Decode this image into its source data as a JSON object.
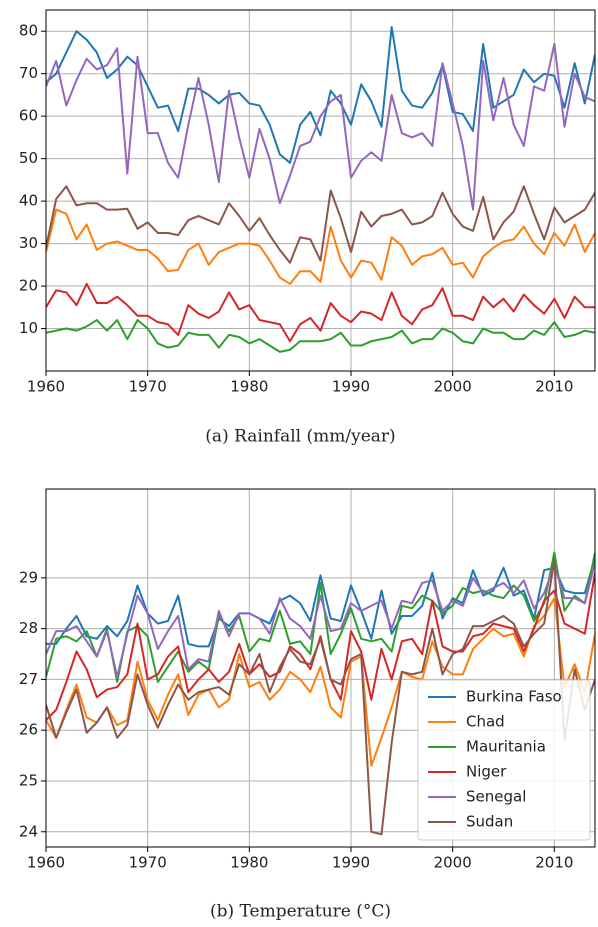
{
  "chart_data": [
    {
      "type": "line",
      "caption": "(a) Rainfall (mm/year)",
      "x": [
        1960,
        1961,
        1962,
        1963,
        1964,
        1965,
        1966,
        1967,
        1968,
        1969,
        1970,
        1971,
        1972,
        1973,
        1974,
        1975,
        1976,
        1977,
        1978,
        1979,
        1980,
        1981,
        1982,
        1983,
        1984,
        1985,
        1986,
        1987,
        1988,
        1989,
        1990,
        1991,
        1992,
        1993,
        1994,
        1995,
        1996,
        1997,
        1998,
        1999,
        2000,
        2001,
        2002,
        2003,
        2004,
        2005,
        2006,
        2007,
        2008,
        2009,
        2010,
        2011,
        2012,
        2013,
        2014
      ],
      "xlim": [
        1960,
        2014
      ],
      "xticks": [
        1960,
        1970,
        1980,
        1990,
        2000,
        2010
      ],
      "ylim": [
        0,
        85
      ],
      "yticks": [
        10,
        20,
        30,
        40,
        50,
        60,
        70,
        80
      ],
      "grid": true,
      "series": [
        {
          "color": "#1f77b4",
          "values": [
            68,
            70,
            75,
            80,
            78,
            75,
            69,
            71,
            74,
            72,
            67,
            62,
            62.5,
            56.5,
            66.5,
            66.5,
            65,
            63,
            65,
            65.5,
            63,
            62.5,
            58,
            51,
            49,
            58,
            61,
            55.5,
            66,
            63,
            58,
            67.5,
            63.5,
            57.5,
            81,
            66,
            62.5,
            62,
            65.5,
            72,
            61,
            60.5,
            56.5,
            77,
            62,
            63.5,
            65,
            71,
            68,
            70,
            69.5,
            62,
            72.5,
            63,
            74.5
          ]
        },
        {
          "color": "#ff7f0e",
          "values": [
            28,
            38,
            37,
            31,
            34.5,
            28.5,
            30,
            30.5,
            29.5,
            28.5,
            28.5,
            26.5,
            23.5,
            23.8,
            28.5,
            30,
            25,
            28,
            29,
            30,
            30,
            29.5,
            26,
            22,
            20.5,
            23.5,
            23.5,
            21,
            34,
            26,
            22,
            26,
            25.5,
            21.5,
            31.5,
            29.5,
            25,
            27,
            27.5,
            29,
            25,
            25.5,
            22,
            27,
            29,
            30.5,
            31,
            34,
            30,
            27.5,
            32.5,
            29.5,
            34.5,
            28,
            32.5
          ]
        },
        {
          "color": "#2ca02c",
          "values": [
            9,
            9.5,
            10,
            9.5,
            10.5,
            12,
            9.5,
            12,
            7.5,
            12,
            10,
            6.5,
            5.5,
            6,
            9,
            8.5,
            8.5,
            5.5,
            8.5,
            8,
            6.5,
            7.5,
            6,
            4.5,
            5,
            7,
            7,
            7,
            7.5,
            9,
            6,
            6,
            7,
            7.5,
            8,
            9.5,
            6.5,
            7.5,
            7.5,
            10,
            9,
            7,
            6.5,
            10,
            9,
            9,
            7.5,
            7.5,
            9.5,
            8.5,
            11.5,
            8,
            8.5,
            9.5,
            9
          ]
        },
        {
          "color": "#d62728",
          "values": [
            15,
            19,
            18.5,
            15.5,
            20.5,
            16,
            16,
            17.5,
            15.5,
            13,
            13,
            11.5,
            11,
            8.5,
            15.5,
            13.5,
            12.5,
            14,
            18.5,
            14.5,
            15.5,
            12,
            11.5,
            11,
            7,
            11,
            12.5,
            9.5,
            16,
            13,
            11.5,
            14,
            13.5,
            12,
            18.5,
            13,
            11,
            14.5,
            15.5,
            19.5,
            13,
            13,
            12,
            17.5,
            15,
            17,
            14,
            18,
            15.5,
            13.5,
            17,
            12.5,
            17.5,
            15,
            15
          ]
        },
        {
          "color": "#9467bd",
          "values": [
            67,
            73,
            62.5,
            68.5,
            73.5,
            71,
            72,
            76,
            46.5,
            74,
            56,
            56,
            49,
            45.5,
            58,
            69,
            58,
            44.5,
            66,
            55,
            45.5,
            57,
            50,
            39.5,
            46,
            53,
            54,
            60,
            63.5,
            65,
            45.5,
            49.5,
            51.5,
            49.5,
            65,
            56,
            55,
            56,
            53,
            72.5,
            63,
            53,
            38,
            73,
            59,
            69,
            58,
            53,
            67,
            66,
            77,
            57.5,
            70,
            64.5,
            63.5
          ]
        },
        {
          "color": "#8c564b",
          "values": [
            29,
            40.5,
            43.5,
            39,
            39.5,
            39.5,
            38,
            38,
            38.2,
            33.5,
            35,
            32.5,
            32.5,
            32,
            35.5,
            36.5,
            35.5,
            34.5,
            39.5,
            36.5,
            33,
            36,
            32,
            28.5,
            25.5,
            31.5,
            31,
            26,
            42.5,
            36,
            28,
            37.5,
            34,
            36.5,
            37,
            38,
            34.5,
            35,
            36.5,
            42,
            37,
            34,
            33,
            41,
            31,
            35,
            37.5,
            43.5,
            37,
            31,
            38.5,
            35,
            36.5,
            38,
            42
          ]
        }
      ]
    },
    {
      "type": "line",
      "caption": "(b) Temperature (°C)",
      "x": [
        1960,
        1961,
        1962,
        1963,
        1964,
        1965,
        1966,
        1967,
        1968,
        1969,
        1970,
        1971,
        1972,
        1973,
        1974,
        1975,
        1976,
        1977,
        1978,
        1979,
        1980,
        1981,
        1982,
        1983,
        1984,
        1985,
        1986,
        1987,
        1988,
        1989,
        1990,
        1991,
        1992,
        1993,
        1994,
        1995,
        1996,
        1997,
        1998,
        1999,
        2000,
        2001,
        2002,
        2003,
        2004,
        2005,
        2006,
        2007,
        2008,
        2009,
        2010,
        2011,
        2012,
        2013,
        2014
      ],
      "xlim": [
        1960,
        2014
      ],
      "xticks": [
        1960,
        1970,
        1980,
        1990,
        2000,
        2010
      ],
      "ylim": [
        23.7,
        30.75
      ],
      "yticks": [
        24,
        25,
        26,
        27,
        28,
        29
      ],
      "grid": true,
      "legend": "lower right",
      "series": [
        {
          "name": "Burkina Faso",
          "color": "#1f77b4",
          "values": [
            27.7,
            27.7,
            28.0,
            28.25,
            27.85,
            27.8,
            28.05,
            27.85,
            28.15,
            28.85,
            28.3,
            28.1,
            28.15,
            28.65,
            27.7,
            27.65,
            27.65,
            28.2,
            28.05,
            28.3,
            28.3,
            28.2,
            28.1,
            28.55,
            28.65,
            28.5,
            28.15,
            29.05,
            28.2,
            28.15,
            28.85,
            28.35,
            27.8,
            28.75,
            27.9,
            28.25,
            28.25,
            28.45,
            29.1,
            28.2,
            28.6,
            28.5,
            29.15,
            28.65,
            28.75,
            29.2,
            28.65,
            28.75,
            28.2,
            29.15,
            29.2,
            28.75,
            28.7,
            28.7,
            29.4
          ]
        },
        {
          "name": "Chad",
          "color": "#ff7f0e",
          "values": [
            26.2,
            25.85,
            26.4,
            26.9,
            26.25,
            26.15,
            26.45,
            26.1,
            26.2,
            27.35,
            26.6,
            26.2,
            26.7,
            27.1,
            26.3,
            26.7,
            26.8,
            26.45,
            26.6,
            27.5,
            26.85,
            26.95,
            26.6,
            26.8,
            27.15,
            27.0,
            26.75,
            27.25,
            26.45,
            26.25,
            27.35,
            27.45,
            25.3,
            25.85,
            26.45,
            27.15,
            27.05,
            27.0,
            27.75,
            27.25,
            27.1,
            27.1,
            27.6,
            27.8,
            28.0,
            27.85,
            27.9,
            27.45,
            28.05,
            28.25,
            28.6,
            26.85,
            27.3,
            26.75,
            27.9
          ]
        },
        {
          "name": "Mauritania",
          "color": "#2ca02c",
          "values": [
            27.05,
            27.8,
            27.85,
            27.75,
            27.95,
            27.45,
            28.0,
            26.95,
            27.95,
            28.05,
            27.85,
            26.95,
            27.25,
            27.55,
            27.15,
            27.35,
            27.2,
            28.25,
            27.95,
            28.25,
            27.55,
            27.8,
            27.75,
            28.35,
            27.7,
            27.75,
            27.5,
            28.9,
            27.5,
            27.9,
            28.4,
            27.8,
            27.75,
            27.8,
            27.55,
            28.45,
            28.4,
            28.65,
            28.55,
            28.3,
            28.45,
            28.8,
            28.7,
            28.75,
            28.65,
            28.6,
            28.85,
            28.65,
            28.15,
            28.5,
            29.5,
            28.35,
            28.65,
            28.5,
            29.5
          ]
        },
        {
          "name": "Niger",
          "color": "#d62728",
          "values": [
            26.2,
            26.4,
            26.95,
            27.55,
            27.2,
            26.65,
            26.8,
            26.85,
            27.1,
            28.1,
            27.0,
            27.1,
            27.45,
            27.65,
            26.75,
            27.0,
            27.2,
            26.95,
            27.15,
            27.7,
            27.1,
            27.3,
            27.05,
            27.15,
            27.65,
            27.5,
            27.2,
            27.85,
            27.0,
            26.6,
            27.95,
            27.55,
            26.6,
            27.6,
            27.0,
            27.75,
            27.8,
            27.5,
            28.55,
            27.65,
            27.55,
            27.55,
            27.85,
            27.9,
            28.1,
            28.05,
            28.0,
            27.55,
            28.0,
            28.55,
            28.75,
            28.1,
            28.0,
            27.9,
            29.1
          ]
        },
        {
          "name": "Senegal",
          "color": "#9467bd",
          "values": [
            27.5,
            27.95,
            27.95,
            28.05,
            27.75,
            27.45,
            27.95,
            27.05,
            27.9,
            28.65,
            28.3,
            27.6,
            27.95,
            28.25,
            27.2,
            27.4,
            27.35,
            28.35,
            27.85,
            28.3,
            28.3,
            28.2,
            27.9,
            28.6,
            28.2,
            28.05,
            27.8,
            28.65,
            27.95,
            28.0,
            28.5,
            28.35,
            28.45,
            28.55,
            28.0,
            28.55,
            28.5,
            28.9,
            28.95,
            28.35,
            28.55,
            28.45,
            29.0,
            28.7,
            28.8,
            28.9,
            28.7,
            28.95,
            28.4,
            28.7,
            29.25,
            28.6,
            28.6,
            28.5,
            29.3
          ]
        },
        {
          "name": "Sudan",
          "color": "#8c564b",
          "values": [
            26.5,
            25.85,
            26.35,
            26.8,
            25.95,
            26.15,
            26.45,
            25.85,
            26.1,
            27.1,
            26.5,
            26.05,
            26.5,
            26.9,
            26.6,
            26.75,
            26.8,
            26.85,
            26.7,
            27.3,
            27.1,
            27.5,
            26.75,
            27.25,
            27.6,
            27.35,
            27.3,
            27.8,
            27.0,
            26.9,
            27.4,
            27.5,
            24.0,
            23.95,
            25.75,
            27.15,
            27.1,
            27.15,
            28.0,
            27.1,
            27.5,
            27.6,
            28.05,
            28.05,
            28.15,
            28.25,
            28.1,
            27.65,
            27.9,
            28.1,
            29.35,
            25.8,
            27.2,
            26.4,
            27.0
          ]
        }
      ]
    }
  ]
}
